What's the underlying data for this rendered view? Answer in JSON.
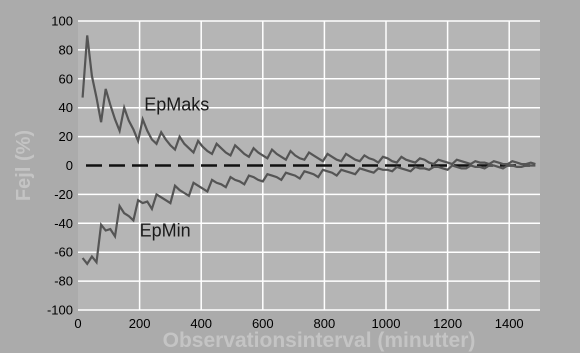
{
  "chart_data": {
    "type": "line",
    "title": "",
    "xlabel": "Observationsinterval (minutter)",
    "ylabel": "Fejl (%)",
    "xlim": [
      0,
      1500
    ],
    "ylim": [
      -100,
      100
    ],
    "xticks": [
      0,
      200,
      400,
      600,
      800,
      1000,
      1200,
      1400
    ],
    "yticks": [
      -100,
      -80,
      -60,
      -40,
      -20,
      0,
      20,
      40,
      60,
      80,
      100
    ],
    "grid": true,
    "legend": "none",
    "colors": {
      "background": "#ababab",
      "plot_area": "#b5b5b5",
      "grid": "#ffffff",
      "series": "#555555",
      "zero_line": "#111111",
      "axis_title": "#c4c4c4"
    },
    "x": [
      15,
      30,
      45,
      60,
      75,
      90,
      105,
      120,
      135,
      150,
      165,
      180,
      195,
      210,
      225,
      240,
      255,
      270,
      285,
      300,
      315,
      330,
      345,
      360,
      375,
      390,
      405,
      420,
      435,
      450,
      465,
      480,
      495,
      510,
      525,
      540,
      555,
      570,
      585,
      600,
      615,
      630,
      645,
      660,
      675,
      690,
      705,
      720,
      735,
      750,
      765,
      780,
      795,
      810,
      825,
      840,
      855,
      870,
      885,
      900,
      915,
      930,
      945,
      960,
      975,
      990,
      1005,
      1020,
      1035,
      1050,
      1065,
      1080,
      1095,
      1110,
      1125,
      1140,
      1155,
      1170,
      1185,
      1200,
      1215,
      1230,
      1245,
      1260,
      1275,
      1290,
      1305,
      1320,
      1335,
      1350,
      1365,
      1380,
      1395,
      1410,
      1425,
      1440,
      1455,
      1470,
      1485
    ],
    "series": [
      {
        "name": "EpMaks",
        "values": [
          47,
          90,
          62,
          47,
          30,
          53,
          42,
          32,
          24,
          40,
          31,
          25,
          17,
          32,
          24,
          18,
          15,
          23,
          18,
          14,
          11,
          20,
          15,
          12,
          9,
          17,
          13,
          10,
          8,
          15,
          12,
          9,
          7,
          14,
          11,
          8,
          6,
          12,
          9,
          7,
          5,
          11,
          8,
          6,
          4,
          10,
          7,
          5,
          4,
          9,
          7,
          5,
          3,
          8,
          6,
          4,
          3,
          8,
          6,
          4,
          3,
          7,
          5,
          4,
          2,
          6,
          5,
          3,
          2,
          6,
          4,
          3,
          2,
          5,
          4,
          2,
          1,
          4,
          3,
          2,
          1,
          4,
          3,
          2,
          1,
          3,
          2,
          2,
          1,
          3,
          2,
          1,
          1,
          3,
          2,
          1,
          1,
          2,
          1
        ]
      },
      {
        "name": "EpMin",
        "values": [
          -64,
          -68,
          -63,
          -67,
          -41,
          -45,
          -44,
          -49,
          -28,
          -33,
          -35,
          -38,
          -24,
          -26,
          -25,
          -30,
          -20,
          -22,
          -24,
          -26,
          -14,
          -17,
          -19,
          -21,
          -12,
          -14,
          -16,
          -18,
          -10,
          -12,
          -13,
          -15,
          -8,
          -10,
          -11,
          -13,
          -7,
          -8,
          -10,
          -11,
          -6,
          -7,
          -8,
          -10,
          -5,
          -6,
          -7,
          -9,
          -4,
          -5,
          -6,
          -8,
          -3,
          -4,
          -5,
          -7,
          -3,
          -4,
          -5,
          -6,
          -2,
          -3,
          -4,
          -5,
          -2,
          -3,
          -3,
          -4,
          -1,
          -2,
          -3,
          -4,
          -1,
          -2,
          -2,
          -3,
          -1,
          -1,
          -2,
          -3,
          0,
          -1,
          -2,
          -2,
          0,
          -1,
          -1,
          -2,
          0,
          0,
          -1,
          -2,
          0,
          0,
          -1,
          -1,
          0,
          0,
          0
        ]
      }
    ],
    "annotations": [
      {
        "text": "EpMaks",
        "x": 215,
        "y": 38
      },
      {
        "text": "EpMin",
        "x": 200,
        "y": -49
      }
    ]
  }
}
